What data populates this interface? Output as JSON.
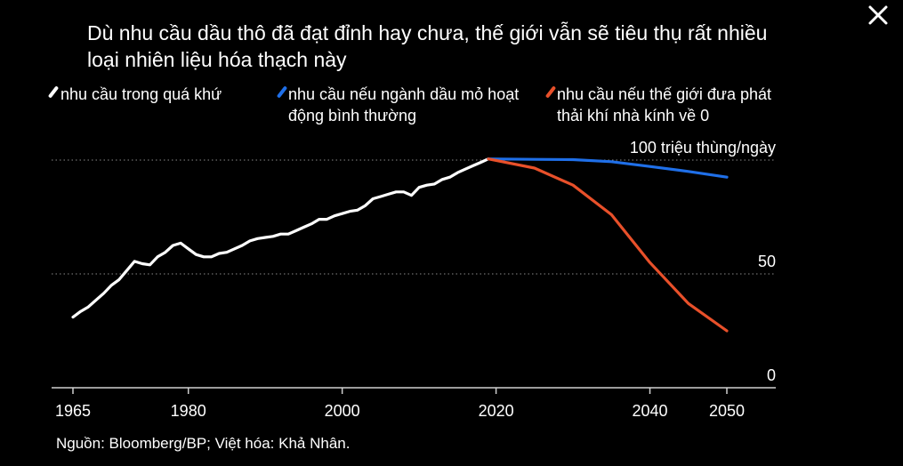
{
  "title": "Dù nhu cầu dầu thô đã đạt đỉnh hay chưa, thế giới vẫn sẽ tiêu thụ rất nhiều loại nhiên liệu hóa thạch này",
  "source": "Nguồn: Bloomberg/BP; Việt hóa: Khả Nhân.",
  "icons": {
    "close": "close-icon"
  },
  "chart_data": {
    "type": "line",
    "title": "Dù nhu cầu dầu thô đã đạt đỉnh hay chưa, thế giới vẫn sẽ tiêu thụ rất nhiều loại nhiên liệu hóa thạch này",
    "ylabel": "100 triệu thùng/ngày",
    "xlabel": "",
    "xlim": [
      1965,
      2050
    ],
    "ylim": [
      0,
      100
    ],
    "x_ticks": [
      1965,
      1980,
      2000,
      2020,
      2040,
      2050
    ],
    "y_ticks": [
      {
        "value": 0,
        "label": "0"
      },
      {
        "value": 50,
        "label": "50"
      },
      {
        "value": 100,
        "label": "100 triệu thùng/ngày"
      }
    ],
    "grid": "horizontal dotted",
    "legend_position": "top",
    "series": [
      {
        "name": "nhu cầu trong quá khứ",
        "color": "#ffffff",
        "x": [
          1965,
          1966,
          1967,
          1968,
          1969,
          1970,
          1971,
          1972,
          1973,
          1974,
          1975,
          1976,
          1977,
          1978,
          1979,
          1980,
          1981,
          1982,
          1983,
          1984,
          1985,
          1986,
          1987,
          1988,
          1989,
          1990,
          1991,
          1992,
          1993,
          1994,
          1995,
          1996,
          1997,
          1998,
          1999,
          2000,
          2001,
          2002,
          2003,
          2004,
          2005,
          2006,
          2007,
          2008,
          2009,
          2010,
          2011,
          2012,
          2013,
          2014,
          2015,
          2016,
          2017,
          2018,
          2019
        ],
        "y": [
          31,
          33.5,
          35.5,
          38.5,
          41.5,
          45,
          47.5,
          51.5,
          55.5,
          54.5,
          54,
          57.5,
          59.5,
          62.5,
          63.5,
          61,
          58.5,
          57.5,
          57.5,
          59,
          59.5,
          61,
          62.5,
          64.5,
          65.5,
          66,
          66.5,
          67.5,
          67.5,
          69,
          70.5,
          72,
          74,
          74,
          75.5,
          76.5,
          77.5,
          78,
          80,
          83,
          84,
          85,
          86,
          86,
          84.5,
          88,
          89,
          89.5,
          91.5,
          92.5,
          94.5,
          96,
          97.5,
          99,
          100.5
        ]
      },
      {
        "name": "nhu cầu nếu ngành dầu mỏ hoạt động bình thường",
        "color": "#1f6fe8",
        "x": [
          2019,
          2025,
          2030,
          2035,
          2040,
          2045,
          2050
        ],
        "y": [
          100.5,
          100.3,
          100.2,
          99.3,
          97.2,
          95,
          92.5
        ]
      },
      {
        "name": "nhu cầu nếu thế giới đưa phát thải khí nhà kính về 0",
        "color": "#e8502a",
        "x": [
          2019,
          2025,
          2030,
          2035,
          2040,
          2045,
          2050
        ],
        "y": [
          100.5,
          96.5,
          89,
          76,
          55,
          37,
          25
        ]
      }
    ]
  }
}
